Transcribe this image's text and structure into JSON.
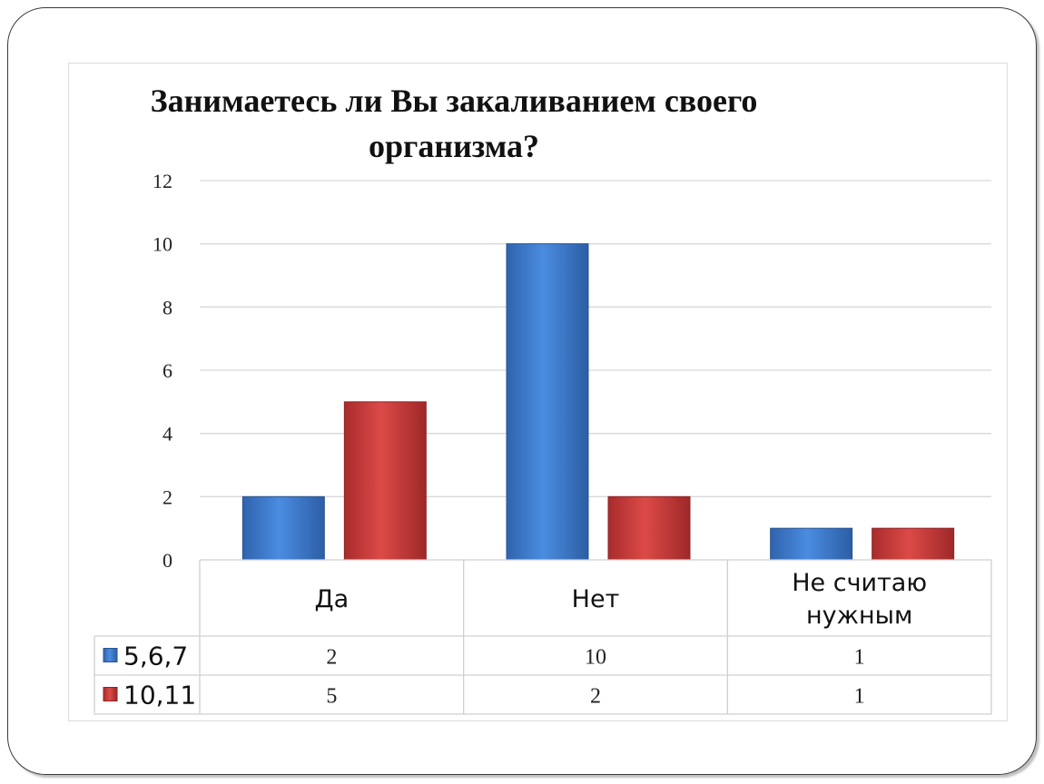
{
  "chart_data": {
    "type": "bar",
    "title": "Занимаетесь ли Вы закаливанием своего\nорганизма?",
    "categories": [
      "Да",
      "Нет",
      "Не считаю\nнужным"
    ],
    "series": [
      {
        "name": "5,6,7",
        "values": [
          2,
          10,
          1
        ],
        "color": "#3f7fd0"
      },
      {
        "name": "10,11",
        "values": [
          5,
          2,
          1
        ],
        "color": "#c93a3a"
      }
    ],
    "ylim": [
      0,
      12
    ],
    "yticks": [
      0,
      2,
      4,
      6,
      8,
      10,
      12
    ],
    "grid": true,
    "data_table": true
  }
}
